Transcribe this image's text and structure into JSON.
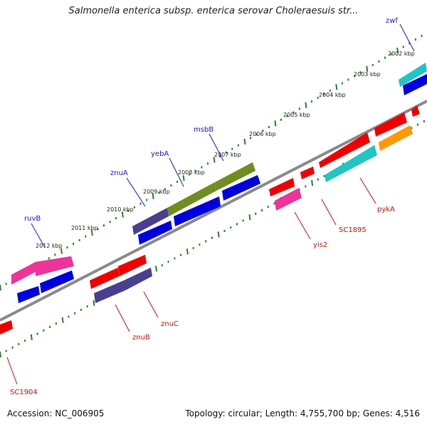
{
  "title": "Salmonella enterica subsp. enterica serovar Choleraesuis str...",
  "footer": {
    "accession": "Accession: NC_006905",
    "topology": "Topology: circular; Length: 4,755,700 bp; Genes: 4,516"
  },
  "colors": {
    "backbone": "#8a8a8a",
    "tick": "#1f8a1f",
    "blue_gene": "#0000dd",
    "red_gene": "#ee0000",
    "purple_gene": "#4a3f8f",
    "olive_gene": "#6e8f1f",
    "pink_gene": "#ee3399",
    "cyan_gene": "#22c4c4",
    "orange_gene": "#ff9900"
  },
  "kbp_labels": [
    "2012 kbp",
    "2011 kbp",
    "2010 kbp",
    "2009 kbp",
    "2008 kbp",
    "2007 kbp",
    "2006 kbp",
    "2005 kbp",
    "2004 kbp",
    "2003 kbp",
    "2002 kbp"
  ],
  "gene_labels": {
    "ruvB": "ruvB",
    "znuA": "znuA",
    "yebA": "yebA",
    "msbB": "msbB",
    "zwf": "zwf",
    "znuB": "znuB",
    "znuC": "znuC",
    "SC1904": "SC1904",
    "yis2": "yis2",
    "SC1895": "SC1895",
    "pykA": "pykA"
  }
}
